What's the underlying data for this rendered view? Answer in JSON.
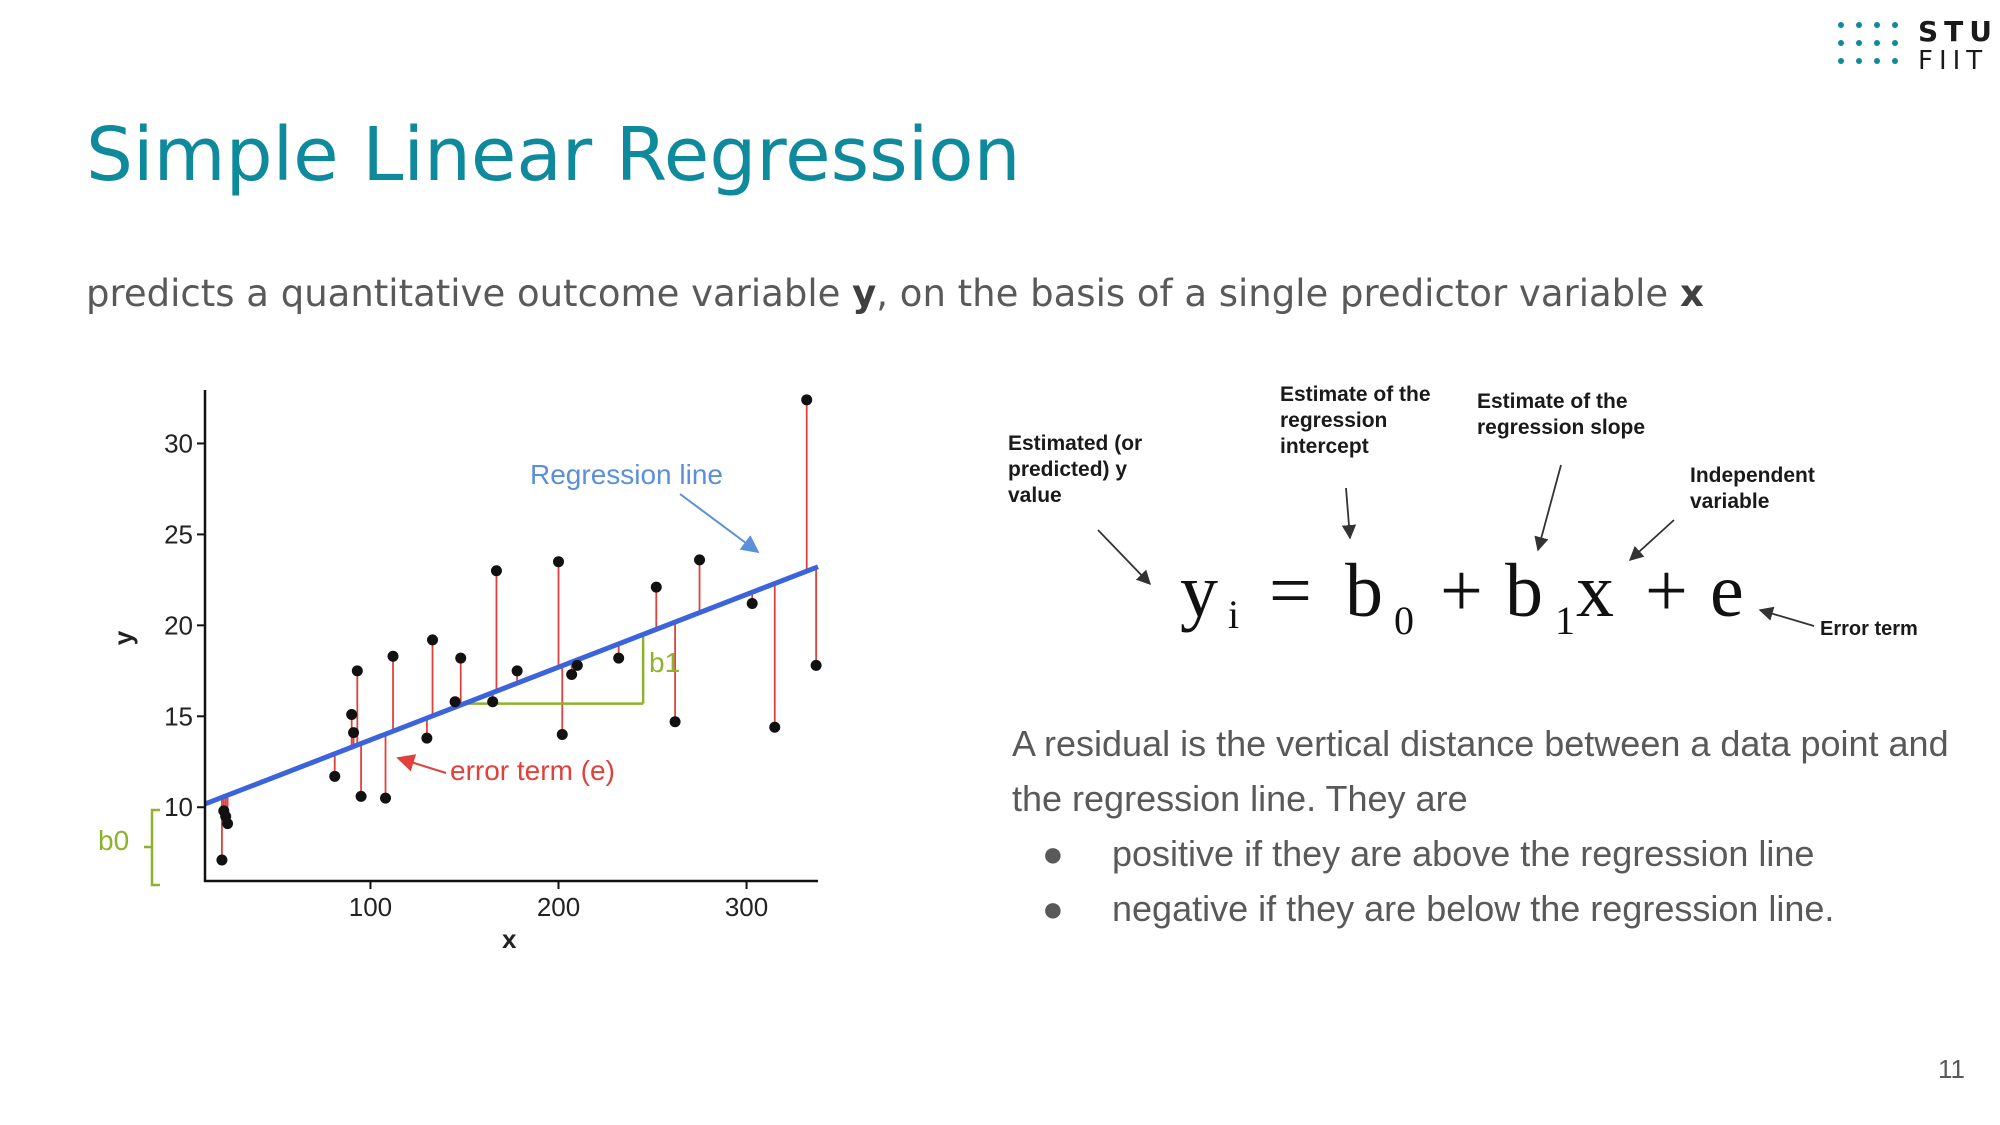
{
  "slide": {
    "title": "Simple Linear Regression",
    "subtitle": {
      "part1": "predicts a quantitative outcome variable ",
      "y": "y",
      "part2": ", on the basis of a single predictor variable ",
      "x": "x"
    },
    "page_number": "11"
  },
  "logo": {
    "line1": "STU",
    "line2": "FIIT",
    "color": "#0f8a9d"
  },
  "colors": {
    "title": "#0f8a9d",
    "body_text": "#595959",
    "regression_line": "#3a63dc",
    "residual": "#e0413a",
    "annotation_green": "#8cb32a",
    "annotation_blue": "#5b8fd8"
  },
  "chart_data": {
    "type": "scatter",
    "xlabel": "x",
    "ylabel": "y",
    "xlim": [
      12,
      338
    ],
    "ylim": [
      6,
      32.5
    ],
    "x_ticks": [
      "100",
      "200",
      "300"
    ],
    "y_ticks": [
      "10",
      "15",
      "20",
      "25",
      "30"
    ],
    "x_tick_values": [
      100,
      200,
      300
    ],
    "y_tick_values": [
      10,
      15,
      20,
      25,
      30
    ],
    "regression_line": {
      "intercept": 9.7,
      "slope": 0.04
    },
    "points": [
      {
        "x": 22,
        "y": 9.8
      },
      {
        "x": 23,
        "y": 9.5
      },
      {
        "x": 24,
        "y": 9.1
      },
      {
        "x": 21,
        "y": 7.1
      },
      {
        "x": 81,
        "y": 11.7
      },
      {
        "x": 90,
        "y": 15.1
      },
      {
        "x": 91,
        "y": 14.1
      },
      {
        "x": 93,
        "y": 17.5
      },
      {
        "x": 95,
        "y": 10.6
      },
      {
        "x": 108,
        "y": 10.5
      },
      {
        "x": 112,
        "y": 18.3
      },
      {
        "x": 130,
        "y": 13.8
      },
      {
        "x": 133,
        "y": 19.2
      },
      {
        "x": 145,
        "y": 15.8
      },
      {
        "x": 148,
        "y": 18.2
      },
      {
        "x": 165,
        "y": 15.8
      },
      {
        "x": 167,
        "y": 23.0
      },
      {
        "x": 178,
        "y": 17.5
      },
      {
        "x": 200,
        "y": 23.5
      },
      {
        "x": 202,
        "y": 14.0
      },
      {
        "x": 207,
        "y": 17.3
      },
      {
        "x": 210,
        "y": 17.8
      },
      {
        "x": 232,
        "y": 18.2
      },
      {
        "x": 252,
        "y": 22.1
      },
      {
        "x": 262,
        "y": 14.7
      },
      {
        "x": 275,
        "y": 23.6
      },
      {
        "x": 303,
        "y": 21.2
      },
      {
        "x": 315,
        "y": 14.4
      },
      {
        "x": 332,
        "y": 32.4
      },
      {
        "x": 337,
        "y": 17.8
      }
    ],
    "annotations": {
      "regression_line": "Regression line",
      "error_term": "error term (e)",
      "slope": "b1",
      "intercept": "b0"
    },
    "slope_triangle": {
      "x_start": 150,
      "x_end": 245
    }
  },
  "formula": {
    "lhs": "y",
    "lhs_sub": "i",
    "equals": "=",
    "b0": "b",
    "b0_sub": "0",
    "plus1": "+",
    "b1": "b",
    "b1_sub": "1",
    "x": "x",
    "plus2": "+",
    "e": "e",
    "labels": {
      "predicted_y": [
        "Estimated  (or",
        "predicted) y",
        "value"
      ],
      "intercept": [
        "Estimate of the",
        "regression",
        "intercept"
      ],
      "slope": [
        "Estimate of the",
        "regression slope"
      ],
      "independent": [
        "Independent",
        "variable"
      ],
      "error": "Error term"
    }
  },
  "residual": {
    "intro": "A residual is the vertical distance between a data point and the regression line. They are",
    "bullet_char": "●",
    "bullets": [
      "positive if they are above the regression line",
      "negative if they are below the regression line."
    ]
  }
}
